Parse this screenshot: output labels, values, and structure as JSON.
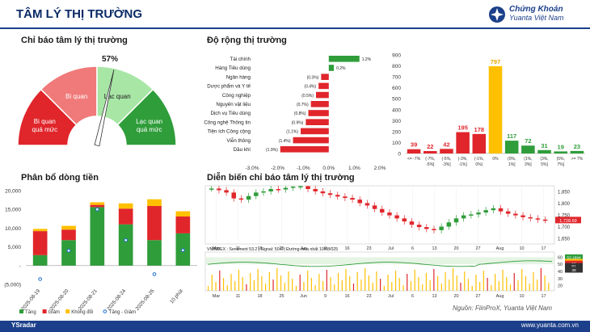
{
  "header": {
    "title": "TÂM LÝ THỊ TRƯỜNG",
    "brand_line1": "Chứng Khoán",
    "brand_line2": "Yuanta Việt Nam",
    "accent": "#1b3f8a"
  },
  "sections": {
    "sentiment": "Chỉ báo tâm lý thị trường",
    "breadth": "Độ rộng thị trường",
    "flow": "Phân bổ dòng tiền",
    "history": "Diễn biến chỉ báo tâm lý thị trường"
  },
  "source": "Nguồn: FiinProX, Yuanta Việt Nam",
  "footer": {
    "left": "YSradar",
    "right": "www.yuanta.com.vn"
  },
  "chart_data": [
    {
      "type": "gauge",
      "value": 57,
      "value_label": "57%",
      "zones": [
        {
          "name": "Bi quan quá mức",
          "color": "#e0262b"
        },
        {
          "name": "Bi quan",
          "color": "#f07a7a"
        },
        {
          "name": "Lạc quan",
          "color": "#a8e6a6"
        },
        {
          "name": "Lạc quan quá mức",
          "color": "#2f9d3a"
        }
      ]
    },
    {
      "type": "bar",
      "orientation": "horizontal",
      "categories": [
        "Tài chính",
        "Hàng Tiêu dùng",
        "Ngân hàng",
        "Dược phẩm và Y tế",
        "Công nghiệp",
        "Nguyên vật liệu",
        "Dịch vụ Tiêu dùng",
        "Công nghệ Thông tin",
        "Tiện ích Công cộng",
        "Viễn thông",
        "Dầu khí"
      ],
      "values": [
        1.2,
        0.2,
        -0.3,
        -0.4,
        -0.5,
        -0.7,
        -0.8,
        -0.9,
        -1.1,
        -1.4,
        -1.9
      ],
      "value_labels": [
        "1.2%",
        "0.2%",
        "(0.3%)",
        "(0.4%)",
        "(0.5%)",
        "(0.7%)",
        "(0.8%)",
        "(0.9%)",
        "(1.1%)",
        "(1.4%)",
        "(1.9%)"
      ],
      "xticks": [
        "-3.0%",
        "-2.0%",
        "-1.0%",
        "0.0%",
        "1.0%",
        "2.0%"
      ],
      "xlim": [
        -3.0,
        2.0
      ]
    },
    {
      "type": "bar",
      "categories": [
        "<= -7%",
        "(-7%, -5%]",
        "(-5%, -3%]",
        "(-3%, -1%]",
        "(-1%, 0%)",
        "0%",
        "(0%, 1%]",
        "(1%, 3%]",
        "(3%, 5%]",
        "(5%, 7%]",
        ">= 7%"
      ],
      "tick_labels": [
        "<= -7%",
        "(-7%,\n-5%]",
        "(-5%,\n-3%]",
        "(-3%,\n-1%]",
        "(-1%,\n0%)",
        "0%",
        "(0%,\n1%]",
        "(1%,\n3%]",
        "(3%,\n5%]",
        "(5%,\n7%]",
        ">= 7%"
      ],
      "values": [
        39,
        22,
        42,
        195,
        178,
        797,
        117,
        72,
        31,
        19,
        23
      ],
      "colors": [
        "#e0262b",
        "#e0262b",
        "#e0262b",
        "#e0262b",
        "#e0262b",
        "#ffc000",
        "#2f9d3a",
        "#2f9d3a",
        "#2f9d3a",
        "#2f9d3a",
        "#2f9d3a"
      ],
      "yticks": [
        0,
        100,
        200,
        300,
        400,
        500,
        600,
        700,
        800,
        900
      ],
      "ylim": [
        0,
        900
      ]
    },
    {
      "type": "bar",
      "stacked": true,
      "categories": [
        "2025-08-19",
        "2025-08-20",
        "2025-08-21",
        "2025-08-24",
        "2025-08-25",
        "Phiên hiện tại"
      ],
      "tick_labels": [
        "2025-08-19",
        "2025-08-20",
        "2025-08-21",
        "2025-08-24",
        "2025-08-25",
        "10 phút"
      ],
      "series": [
        {
          "name": "Tăng",
          "color": "#2f9d3a",
          "values": [
            2800,
            6800,
            15600,
            11000,
            6800,
            8600
          ]
        },
        {
          "name": "Giảm",
          "color": "#e0262b",
          "values": [
            6400,
            2800,
            600,
            4200,
            9100,
            4500
          ]
        },
        {
          "name": "Không đổi",
          "color": "#ffc000",
          "values": [
            600,
            1000,
            700,
            1400,
            1800,
            1400
          ]
        }
      ],
      "net_series": {
        "name": "Tăng - Giảm",
        "values": [
          -3600,
          4000,
          15000,
          6800,
          -2300,
          4100
        ]
      },
      "yticks": [
        "(5,000)",
        "-",
        "5,000",
        "10,000",
        "15,000",
        "20,000"
      ],
      "ylim": [
        -5000,
        20000
      ]
    },
    {
      "type": "line",
      "index_label": "VNINDEX : Sentiment 53.2 | Signal: 50.6 | Đường mua nhất 10/08/025",
      "price_axis": [
        "1,650",
        "1,700",
        "1,750",
        "1,800",
        "1,850"
      ],
      "price_value_label": "1,728.69",
      "sentiment_axis": [
        "20",
        "30",
        "40",
        "50",
        "60"
      ],
      "sentiment_labels": [
        "53.1894",
        "50.6257",
        "53",
        "51",
        "39"
      ],
      "x_months": [
        "Mar",
        "Jun",
        "Jul",
        "Aug"
      ],
      "x_ticks_top": [
        "Mar",
        "11",
        "18",
        "25",
        "Jun",
        "9",
        "16",
        "23",
        "Jul",
        "6",
        "13",
        "20",
        "27",
        "Aug",
        "10",
        "17"
      ],
      "x_ticks_bottom": [
        "Mar",
        "11",
        "18",
        "25",
        "Jun",
        "9",
        "16",
        "23",
        "Jul",
        "6",
        "13",
        "20",
        "27",
        "Aug",
        "10",
        "17"
      ]
    }
  ]
}
